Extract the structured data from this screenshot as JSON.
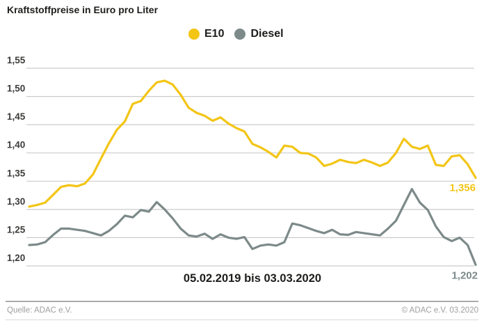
{
  "title": "Kraftstoffpreise in Euro pro Liter",
  "footer": {
    "source": "Quelle: ADAC e.V.",
    "copyright": "© ADAC e.V.  03.2020"
  },
  "colors": {
    "e10": "#f3c515",
    "diesel": "#7c8a89",
    "gridline": "#cbcbcb",
    "text_dark": "#1d1d1b",
    "tick_text": "#3c3c3b",
    "footer_text": "#9e9e9e"
  },
  "chart_data": {
    "type": "line",
    "title": "Kraftstoffpreise in Euro pro Liter",
    "xlabel": "05.02.2019 bis 03.03.2020",
    "ylabel": "Euro pro Liter",
    "ylim": [
      1.2,
      1.55
    ],
    "grid": "horizontal",
    "legend_position": "top-center",
    "x_description": "57 weekly readings from 05.02.2019 to 03.03.2020",
    "yticks": [
      {
        "label": "1,55",
        "value": 1.55
      },
      {
        "label": "1,50",
        "value": 1.5
      },
      {
        "label": "1,45",
        "value": 1.45
      },
      {
        "label": "1,40",
        "value": 1.4
      },
      {
        "label": "1,35",
        "value": 1.35
      },
      {
        "label": "1,30",
        "value": 1.3
      },
      {
        "label": "1,25",
        "value": 1.25
      },
      {
        "label": "1,20",
        "value": 1.2
      }
    ],
    "series": [
      {
        "name": "E10",
        "color": "#f3c515",
        "end_label": "1,356",
        "end_value": 1.356,
        "values": [
          1.305,
          1.308,
          1.312,
          1.326,
          1.34,
          1.343,
          1.341,
          1.346,
          1.362,
          1.39,
          1.417,
          1.441,
          1.456,
          1.487,
          1.492,
          1.51,
          1.525,
          1.528,
          1.521,
          1.503,
          1.48,
          1.471,
          1.466,
          1.457,
          1.463,
          1.452,
          1.444,
          1.438,
          1.416,
          1.41,
          1.402,
          1.392,
          1.413,
          1.411,
          1.4,
          1.399,
          1.392,
          1.377,
          1.381,
          1.388,
          1.384,
          1.382,
          1.388,
          1.383,
          1.377,
          1.383,
          1.4,
          1.425,
          1.411,
          1.407,
          1.413,
          1.379,
          1.377,
          1.394,
          1.396,
          1.38,
          1.356
        ]
      },
      {
        "name": "Diesel",
        "color": "#7c8a89",
        "end_label": "1,202",
        "end_value": 1.202,
        "values": [
          1.237,
          1.238,
          1.242,
          1.255,
          1.266,
          1.266,
          1.264,
          1.262,
          1.258,
          1.254,
          1.262,
          1.274,
          1.289,
          1.286,
          1.299,
          1.296,
          1.313,
          1.3,
          1.284,
          1.266,
          1.254,
          1.252,
          1.257,
          1.248,
          1.256,
          1.25,
          1.248,
          1.251,
          1.23,
          1.236,
          1.238,
          1.236,
          1.242,
          1.275,
          1.272,
          1.267,
          1.262,
          1.258,
          1.264,
          1.256,
          1.255,
          1.26,
          1.258,
          1.256,
          1.254,
          1.266,
          1.28,
          1.308,
          1.336,
          1.312,
          1.299,
          1.27,
          1.251,
          1.244,
          1.25,
          1.237,
          1.202
        ]
      }
    ]
  }
}
